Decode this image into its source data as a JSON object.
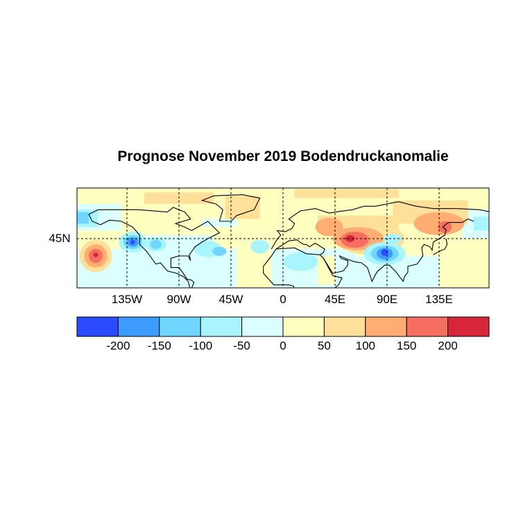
{
  "title": "Prognose November 2019 Bodendruckanomalie",
  "map": {
    "lat_labels": [
      {
        "lat": 45,
        "label": "45N"
      }
    ],
    "lon_labels": [
      {
        "lon": -135,
        "label": "135W"
      },
      {
        "lon": -90,
        "label": "90W"
      },
      {
        "lon": -45,
        "label": "45W"
      },
      {
        "lon": 0,
        "label": "0"
      },
      {
        "lon": 45,
        "label": "45E"
      },
      {
        "lon": 90,
        "label": "90E"
      },
      {
        "lon": 135,
        "label": "135E"
      }
    ],
    "gridlines": "dashed"
  },
  "colorbar": {
    "colors": [
      "#2b4bff",
      "#3d9bff",
      "#70d6ff",
      "#a8f4ff",
      "#dbffff",
      "#ffffc0",
      "#ffe099",
      "#ffad72",
      "#f56e5f",
      "#d7263a"
    ],
    "labels": [
      "-200",
      "-150",
      "-100",
      "-50",
      "0",
      "50",
      "100",
      "150",
      "200"
    ]
  }
}
